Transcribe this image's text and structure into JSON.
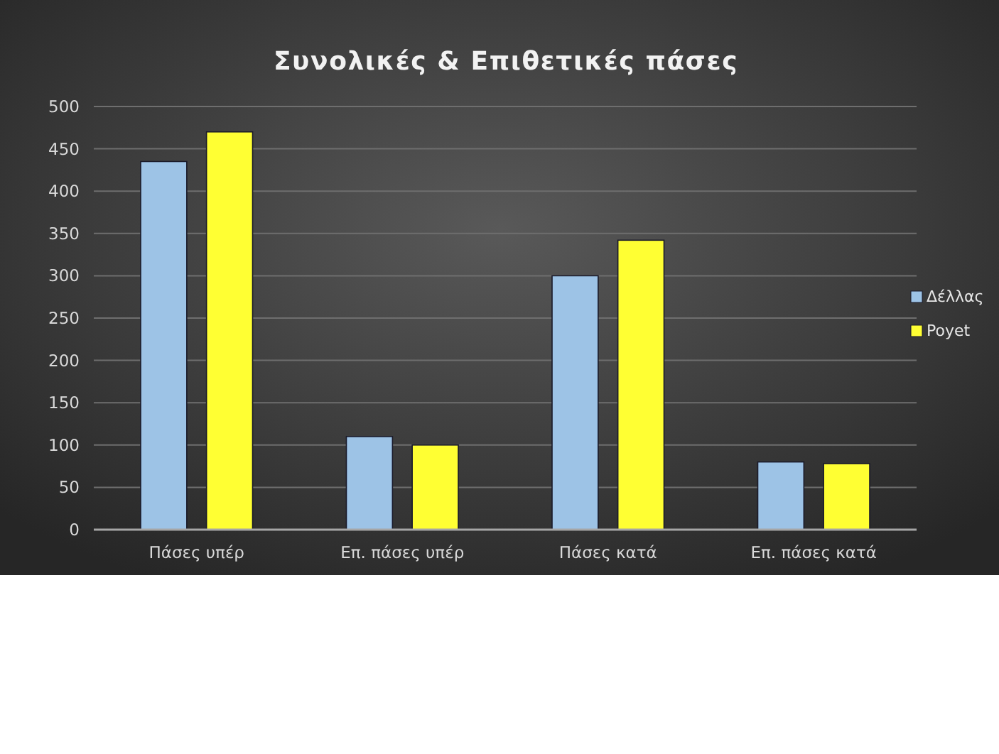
{
  "chart_data": {
    "type": "bar",
    "title": "Συνολικές & Επιθετικές πάσες",
    "categories": [
      "Πάσες υπέρ",
      "Επ. πάσες υπέρ",
      "Πάσες κατά",
      "Επ. πάσες κατά"
    ],
    "series": [
      {
        "name": "Δέλλας",
        "color": "#9dc3e6",
        "values": [
          435,
          110,
          300,
          80
        ]
      },
      {
        "name": "Poyet",
        "color": "#ffff33",
        "values": [
          470,
          100,
          342,
          78
        ]
      }
    ],
    "ylim": [
      0,
      500
    ],
    "yticks": [
      0,
      50,
      100,
      150,
      200,
      250,
      300,
      350,
      400,
      450,
      500
    ],
    "grid": "y",
    "legend": "right"
  }
}
